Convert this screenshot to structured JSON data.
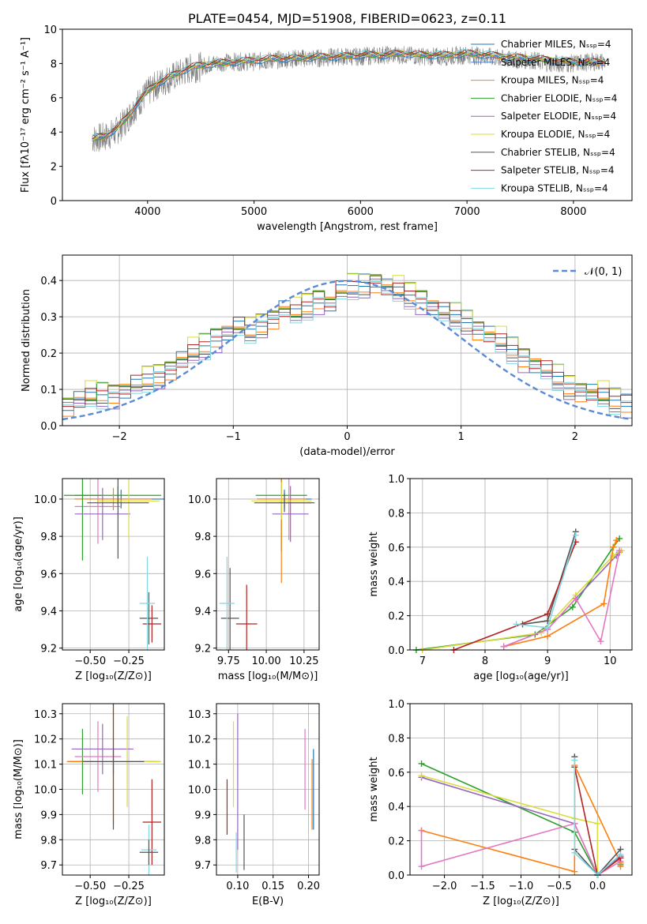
{
  "chart_data": [
    {
      "type": "line",
      "title": "PLATE=0454, MJD=51908, FIBERID=0623, z=0.11",
      "xlabel": "wavelength [Angstrom, rest frame]",
      "ylabel": "Flux [fλ10⁻¹⁷ erg cm⁻² s⁻¹ A⁻¹]",
      "xlim": [
        3200,
        8550
      ],
      "ylim": [
        0,
        10
      ],
      "xticks": [
        4000,
        5000,
        6000,
        7000,
        8000
      ],
      "yticks": [
        0,
        2,
        4,
        6,
        8,
        10
      ],
      "legend_position": "right",
      "legend": [
        {
          "name": "Chabrier MILES, Nₛₛₚ=4",
          "color": "#1f77b4"
        },
        {
          "name": "Salpeter MILES, Nₛₛₚ=4",
          "color": "#4a7fc9"
        },
        {
          "name": "Kroupa MILES, Nₛₛₚ=4",
          "color": "#ff7f0e"
        },
        {
          "name": "Chabrier ELODIE, Nₛₛₚ=4",
          "color": "#2ca02c"
        },
        {
          "name": "Salpeter ELODIE, Nₛₛₚ=4",
          "color": "#9467bd"
        },
        {
          "name": "Kroupa ELODIE, Nₛₛₚ=4",
          "color": "#dbdb3d"
        },
        {
          "name": "Chabrier STELIB, Nₛₛₚ=4",
          "color": "#555555"
        },
        {
          "name": "Salpeter STELIB, Nₛₛₚ=4",
          "color": "#b22222"
        },
        {
          "name": "Kroupa STELIB, Nₛₛₚ=4",
          "color": "#80d8e0"
        }
      ],
      "data_series": {
        "x": [
          3480,
          3600,
          3700,
          3800,
          3900,
          4000,
          4100,
          4200,
          4300,
          4400,
          4500,
          4600,
          4800,
          5000,
          5200,
          5400,
          5600,
          5800,
          6000,
          6200,
          6400,
          6600,
          6800,
          7000,
          7200,
          7400,
          7600,
          7800,
          8000,
          8200,
          8300
        ],
        "y": [
          3.6,
          3.7,
          4.0,
          4.7,
          5.6,
          6.3,
          6.8,
          7.1,
          7.4,
          7.7,
          7.8,
          8.0,
          8.1,
          8.1,
          8.2,
          8.3,
          8.3,
          8.4,
          8.4,
          8.5,
          8.5,
          8.4,
          8.4,
          8.5,
          8.4,
          8.2,
          8.2,
          8.0,
          8.0,
          8.1,
          8.1
        ],
        "color": "#808080"
      },
      "model_y": [
        3.6,
        3.8,
        4.2,
        4.8,
        5.7,
        6.4,
        6.9,
        7.2,
        7.5,
        7.8,
        7.9,
        8.0,
        8.1,
        8.2,
        8.3,
        8.3,
        8.4,
        8.4,
        8.5,
        8.5,
        8.6,
        8.5,
        8.5,
        8.6,
        8.5,
        8.4,
        8.3,
        8.2,
        8.1,
        8.1,
        8.1
      ]
    },
    {
      "type": "line",
      "xlabel": "(data-model)/error",
      "ylabel": "Normed distribution",
      "xlim": [
        -2.5,
        2.5
      ],
      "ylim": [
        0,
        0.47
      ],
      "xticks": [
        -2,
        -1,
        0,
        1,
        2
      ],
      "yticks": [
        0.0,
        0.1,
        0.2,
        0.3,
        0.4
      ],
      "grid": true,
      "legend_position": "top-right",
      "legend": [
        {
          "name": "𝒩(0, 1)",
          "color": "#5b8ad6"
        }
      ],
      "hist_bin_width": 0.1,
      "hist_density": [
        0.04,
        0.045,
        0.05,
        0.055,
        0.06,
        0.07,
        0.08,
        0.085,
        0.09,
        0.1,
        0.11,
        0.125,
        0.14,
        0.16,
        0.18,
        0.2,
        0.22,
        0.245,
        0.26,
        0.27,
        0.26,
        0.28,
        0.3,
        0.32,
        0.31,
        0.33,
        0.35,
        0.34,
        0.37,
        0.38,
        0.39,
        0.4,
        0.38,
        0.37,
        0.36,
        0.35,
        0.33,
        0.31,
        0.3,
        0.29,
        0.27,
        0.25,
        0.23,
        0.21,
        0.19,
        0.17,
        0.15,
        0.13,
        0.11,
        0.1,
        0.09,
        0.08,
        0.07,
        0.065,
        0.06,
        0.05,
        0.045,
        0.04
      ],
      "hist_series": [
        {
          "name": "Chabrier MILES",
          "color": "#1f77b4",
          "offset": 0.0
        },
        {
          "name": "Salpeter MILES",
          "color": "#4a7fc9",
          "offset": 0.01
        },
        {
          "name": "Kroupa MILES",
          "color": "#ff7f0e",
          "offset": -0.01
        },
        {
          "name": "Chabrier ELODIE",
          "color": "#2ca02c",
          "offset": 0.015
        },
        {
          "name": "Salpeter ELODIE",
          "color": "#9467bd",
          "offset": -0.02
        },
        {
          "name": "Kroupa ELODIE",
          "color": "#dbdb3d",
          "offset": 0.02
        },
        {
          "name": "Chabrier STELIB",
          "color": "#555555",
          "offset": -0.005
        },
        {
          "name": "Salpeter STELIB",
          "color": "#b22222",
          "offset": 0.005
        },
        {
          "name": "Kroupa STELIB",
          "color": "#80d8e0",
          "offset": -0.015
        }
      ]
    },
    {
      "type": "scatter",
      "xlabel": "Z [log₁₀(Z/Z⊙)]",
      "ylabel": "age  [log₁₀(age/yr)]",
      "xlim": [
        -0.68,
        -0.02
      ],
      "ylim": [
        9.19,
        10.11
      ],
      "xticks": [
        -0.5,
        -0.25
      ],
      "yticks": [
        9.2,
        9.4,
        9.6,
        9.8,
        10.0
      ],
      "grid": true,
      "points": [
        {
          "x": -0.3,
          "y": 10.0,
          "xerr": 0.3,
          "yerr": 0.05,
          "color": "#1f77b4"
        },
        {
          "x": -0.32,
          "y": 10.02,
          "xerr": 0.28,
          "yerr": 0.05,
          "color": "#2ca02c"
        },
        {
          "x": -0.35,
          "y": 10.0,
          "xerr": 0.25,
          "yerr": 0.06,
          "color": "#ff7f0e"
        },
        {
          "x": -0.45,
          "y": 9.96,
          "xerr": 0.15,
          "yerr": 0.2,
          "color": "#e377c2"
        },
        {
          "x": -0.55,
          "y": 10.02,
          "xerr": 0.12,
          "yerr": 0.35,
          "color": "#2ca02c"
        },
        {
          "x": -0.42,
          "y": 9.92,
          "xerr": 0.18,
          "yerr": 0.14,
          "color": "#9467bd"
        },
        {
          "x": -0.25,
          "y": 9.99,
          "xerr": 0.2,
          "yerr": 0.2,
          "color": "#dbdb3d"
        },
        {
          "x": -0.32,
          "y": 9.98,
          "xerr": 0.2,
          "yerr": 0.3,
          "color": "#555555"
        },
        {
          "x": -0.12,
          "y": 9.36,
          "xerr": 0.06,
          "yerr": 0.14,
          "color": "#555555"
        },
        {
          "x": -0.1,
          "y": 9.33,
          "xerr": 0.06,
          "yerr": 0.1,
          "color": "#b22222"
        },
        {
          "x": -0.13,
          "y": 9.44,
          "xerr": 0.05,
          "yerr": 0.25,
          "color": "#80d8e0"
        }
      ]
    },
    {
      "type": "scatter",
      "xlabel": "mass [log₁₀(M/M⊙)]",
      "xlim": [
        9.67,
        10.35
      ],
      "ylim": [
        9.19,
        10.11
      ],
      "xticks": [
        9.75,
        10.0,
        10.25
      ],
      "yticks": [
        9.2,
        9.4,
        9.6,
        9.8,
        10.0
      ],
      "grid": true,
      "points": [
        {
          "x": 10.12,
          "y": 10.0,
          "xerr": 0.18,
          "yerr": 0.05,
          "color": "#1f77b4"
        },
        {
          "x": 10.1,
          "y": 10.02,
          "xerr": 0.17,
          "yerr": 0.3,
          "color": "#2ca02c"
        },
        {
          "x": 10.1,
          "y": 10.0,
          "xerr": 0.16,
          "yerr": 0.45,
          "color": "#ff7f0e"
        },
        {
          "x": 10.15,
          "y": 9.98,
          "xerr": 0.15,
          "yerr": 0.2,
          "color": "#e377c2"
        },
        {
          "x": 10.16,
          "y": 9.92,
          "xerr": 0.12,
          "yerr": 0.15,
          "color": "#9467bd"
        },
        {
          "x": 10.1,
          "y": 9.99,
          "xerr": 0.2,
          "yerr": 0.1,
          "color": "#dbdb3d"
        },
        {
          "x": 10.12,
          "y": 9.98,
          "xerr": 0.2,
          "yerr": 0.05,
          "color": "#555555"
        },
        {
          "x": 9.76,
          "y": 9.36,
          "xerr": 0.06,
          "yerr": 0.27,
          "color": "#555555"
        },
        {
          "x": 9.87,
          "y": 9.33,
          "xerr": 0.07,
          "yerr": 0.21,
          "color": "#b22222"
        },
        {
          "x": 9.74,
          "y": 9.44,
          "xerr": 0.05,
          "yerr": 0.25,
          "color": "#80d8e0"
        }
      ]
    },
    {
      "type": "line",
      "xlabel": "age  [log₁₀(age/yr)]",
      "ylabel": "mass weight",
      "xlim": [
        6.8,
        10.35
      ],
      "ylim": [
        0.0,
        1.0
      ],
      "xticks": [
        7,
        8,
        9,
        10
      ],
      "yticks": [
        0.0,
        0.2,
        0.4,
        0.6,
        0.8,
        1.0
      ],
      "grid": true,
      "series": [
        {
          "x": [
            6.9,
            8.8,
            9.4,
            10.05,
            10.15
          ],
          "y": [
            0.0,
            0.09,
            0.25,
            0.6,
            0.65
          ],
          "color": "#2ca02c"
        },
        {
          "x": [
            8.3,
            9.0,
            9.45,
            10.1,
            10.15
          ],
          "y": [
            0.02,
            0.12,
            0.3,
            0.55,
            0.57
          ],
          "color": "#9467bd"
        },
        {
          "x": [
            7.0,
            8.9,
            9.45,
            10.05,
            10.18
          ],
          "y": [
            0.0,
            0.1,
            0.32,
            0.55,
            0.58
          ],
          "color": "#dbdb3d"
        },
        {
          "x": [
            8.3,
            9.0,
            9.9,
            10.05,
            10.1
          ],
          "y": [
            0.02,
            0.08,
            0.27,
            0.6,
            0.64
          ],
          "color": "#ff7f0e"
        },
        {
          "x": [
            8.3,
            9.0,
            9.45,
            9.85,
            10.15
          ],
          "y": [
            0.02,
            0.12,
            0.3,
            0.05,
            0.58
          ],
          "color": "#e377c2"
        },
        {
          "x": [
            8.6,
            9.0,
            9.45
          ],
          "y": [
            0.15,
            0.17,
            0.69
          ],
          "color": "#555555"
        },
        {
          "x": [
            7.5,
            9.0,
            9.45
          ],
          "y": [
            0.0,
            0.21,
            0.63
          ],
          "color": "#b22222"
        },
        {
          "x": [
            8.5,
            9.0,
            9.45
          ],
          "y": [
            0.15,
            0.13,
            0.67
          ],
          "color": "#80d8e0"
        }
      ]
    },
    {
      "type": "scatter",
      "xlabel": "Z [log₁₀(Z/Z⊙)]",
      "ylabel": "mass [log₁₀(M/M⊙)]",
      "xlim": [
        -0.68,
        -0.02
      ],
      "ylim": [
        9.66,
        10.34
      ],
      "xticks": [
        -0.5,
        -0.25
      ],
      "yticks": [
        9.7,
        9.8,
        9.9,
        10.0,
        10.1,
        10.2,
        10.3
      ],
      "grid": true,
      "points": [
        {
          "x": -0.35,
          "y": 10.11,
          "xerr": 0.28,
          "yerr": 0.05,
          "color": "#1f77b4"
        },
        {
          "x": -0.55,
          "y": 10.11,
          "xerr": 0.1,
          "yerr": 0.13,
          "color": "#2ca02c"
        },
        {
          "x": -0.35,
          "y": 10.11,
          "xerr": 0.3,
          "yerr": 0.25,
          "color": "#ff7f0e"
        },
        {
          "x": -0.45,
          "y": 10.13,
          "xerr": 0.15,
          "yerr": 0.14,
          "color": "#e377c2"
        },
        {
          "x": -0.42,
          "y": 10.16,
          "xerr": 0.2,
          "yerr": 0.1,
          "color": "#9467bd"
        },
        {
          "x": -0.26,
          "y": 10.11,
          "xerr": 0.22,
          "yerr": 0.18,
          "color": "#dbdb3d"
        },
        {
          "x": -0.35,
          "y": 10.11,
          "xerr": 0.2,
          "yerr": 0.27,
          "color": "#555555"
        },
        {
          "x": -0.1,
          "y": 9.87,
          "xerr": 0.06,
          "yerr": 0.17,
          "color": "#b22222"
        },
        {
          "x": -0.12,
          "y": 9.76,
          "xerr": 0.05,
          "yerr": 0.1,
          "color": "#80d8e0"
        },
        {
          "x": -0.12,
          "y": 9.75,
          "xerr": 0.06,
          "yerr": 0.05,
          "color": "#555555"
        }
      ]
    },
    {
      "type": "scatter",
      "xlabel": "E(B-V)",
      "xlim": [
        0.07,
        0.215
      ],
      "ylim": [
        9.66,
        10.34
      ],
      "xticks": [
        0.1,
        0.15,
        0.2
      ],
      "yticks": [
        9.7,
        9.8,
        9.9,
        10.0,
        10.1,
        10.2,
        10.3
      ],
      "grid": true,
      "points": [
        {
          "x": 0.207,
          "y": 10.0,
          "yerr": 0.16,
          "color": "#1f77b4"
        },
        {
          "x": 0.1,
          "y": 10.03,
          "yerr": 0.27,
          "color": "#9467bd"
        },
        {
          "x": 0.205,
          "y": 9.98,
          "yerr": 0.14,
          "color": "#ff7f0e"
        },
        {
          "x": 0.195,
          "y": 10.08,
          "yerr": 0.16,
          "color": "#e377c2"
        },
        {
          "x": 0.094,
          "y": 10.1,
          "yerr": 0.17,
          "color": "#dbdb3d"
        },
        {
          "x": 0.109,
          "y": 9.79,
          "yerr": 0.11,
          "color": "#555555"
        },
        {
          "x": 0.085,
          "y": 9.93,
          "yerr": 0.11,
          "color": "#b22222"
        },
        {
          "x": 0.098,
          "y": 9.75,
          "yerr": 0.08,
          "color": "#80d8e0"
        }
      ]
    },
    {
      "type": "line",
      "xlabel": "Z [log₁₀(Z/Z⊙)]",
      "ylabel": "mass weight",
      "xlim": [
        -2.45,
        0.45
      ],
      "ylim": [
        0.0,
        1.0
      ],
      "xticks": [
        -2.0,
        -1.5,
        -1.0,
        -0.5,
        0.0
      ],
      "yticks": [
        0.0,
        0.2,
        0.4,
        0.6,
        0.8,
        1.0
      ],
      "grid": true,
      "series": [
        {
          "x": [
            -2.3,
            -0.3,
            0.0,
            0.3,
            0.3
          ],
          "y": [
            0.65,
            0.25,
            0.0,
            0.1,
            0.06
          ],
          "color": "#2ca02c"
        },
        {
          "x": [
            -2.3,
            -0.3,
            0.0,
            0.3
          ],
          "y": [
            0.57,
            0.3,
            0.0,
            0.11
          ],
          "color": "#9467bd"
        },
        {
          "x": [
            -2.3,
            -0.3,
            0.0,
            0.0,
            0.3
          ],
          "y": [
            0.58,
            0.33,
            0.3,
            0.0,
            0.1
          ],
          "color": "#dbdb3d"
        },
        {
          "x": [
            -2.3,
            -0.3,
            -0.3,
            0.3,
            0.3
          ],
          "y": [
            0.26,
            0.02,
            0.64,
            0.07,
            0.05
          ],
          "color": "#ff7f0e"
        },
        {
          "x": [
            -2.3,
            -2.3,
            -0.3,
            0.0,
            0.3
          ],
          "y": [
            0.26,
            0.05,
            0.3,
            0.0,
            0.08
          ],
          "color": "#e377c2"
        },
        {
          "x": [
            -0.3,
            -0.3,
            0.0,
            0.3
          ],
          "y": [
            0.69,
            0.15,
            0.0,
            0.15
          ],
          "color": "#555555"
        },
        {
          "x": [
            -0.3,
            0.0,
            0.3
          ],
          "y": [
            0.63,
            0.0,
            0.1
          ],
          "color": "#b22222"
        },
        {
          "x": [
            -0.3,
            -0.3,
            0.0,
            0.3
          ],
          "y": [
            0.67,
            0.13,
            0.0,
            0.12
          ],
          "color": "#80d8e0"
        }
      ]
    }
  ]
}
